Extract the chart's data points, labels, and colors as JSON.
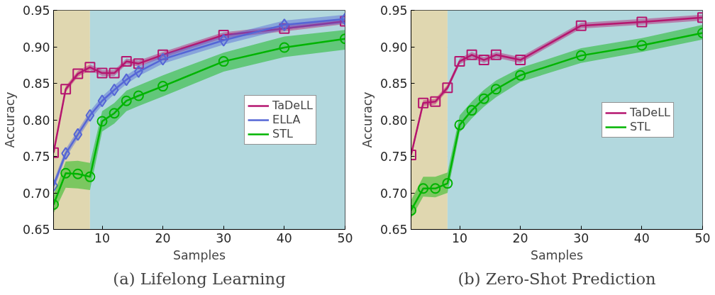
{
  "chart_data": [
    {
      "type": "line",
      "title": "(a) Lifelong Learning",
      "xlabel": "Samples",
      "ylabel": "Accuracy",
      "x": [
        2,
        4,
        6,
        8,
        10,
        12,
        14,
        16,
        20,
        30,
        40,
        50
      ],
      "series": [
        {
          "name": "TaDeLL",
          "color": "#b5166f",
          "marker": "square",
          "values": [
            0.755,
            0.842,
            0.863,
            0.872,
            0.864,
            0.864,
            0.88,
            0.877,
            0.889,
            0.916,
            0.925,
            0.935
          ],
          "lower": [
            0.751,
            0.838,
            0.859,
            0.868,
            0.86,
            0.86,
            0.876,
            0.873,
            0.885,
            0.912,
            0.921,
            0.931
          ],
          "upper": [
            0.759,
            0.846,
            0.867,
            0.876,
            0.868,
            0.868,
            0.884,
            0.881,
            0.893,
            0.92,
            0.929,
            0.939
          ]
        },
        {
          "name": "ELLA",
          "color": "#5566d6",
          "marker": "diamond",
          "values": [
            0.71,
            0.754,
            0.78,
            0.806,
            0.826,
            0.841,
            0.855,
            0.866,
            0.883,
            0.909,
            0.93,
            0.938
          ],
          "lower": [
            0.704,
            0.748,
            0.774,
            0.8,
            0.82,
            0.835,
            0.849,
            0.86,
            0.877,
            0.903,
            0.924,
            0.932
          ],
          "upper": [
            0.716,
            0.76,
            0.786,
            0.812,
            0.832,
            0.847,
            0.861,
            0.872,
            0.889,
            0.915,
            0.936,
            0.944
          ]
        },
        {
          "name": "STL",
          "color": "#00b400",
          "marker": "circle",
          "values": [
            0.684,
            0.727,
            0.726,
            0.722,
            0.798,
            0.809,
            0.826,
            0.833,
            0.846,
            0.88,
            0.899,
            0.911
          ],
          "lower": [
            0.672,
            0.707,
            0.706,
            0.704,
            0.784,
            0.795,
            0.812,
            0.819,
            0.832,
            0.866,
            0.886,
            0.896
          ],
          "upper": [
            0.697,
            0.743,
            0.744,
            0.741,
            0.812,
            0.823,
            0.84,
            0.847,
            0.861,
            0.892,
            0.914,
            0.923
          ]
        }
      ],
      "bands": [
        {
          "axis": "x",
          "from": 2,
          "to": 8,
          "color": "#e0d7b0"
        },
        {
          "axis": "x",
          "from": 8,
          "to": 50,
          "color": "#b2d8de"
        }
      ],
      "xlim": [
        2,
        50
      ],
      "xticks": [
        10,
        20,
        30,
        40,
        50
      ],
      "ylim": [
        0.65,
        0.95
      ],
      "yticks": [
        {
          "value": 0.65,
          "label": "0.65"
        },
        {
          "value": 0.7,
          "label": "0.70"
        },
        {
          "value": 0.75,
          "label": "0.75"
        },
        {
          "value": 0.8,
          "label": "0.80"
        },
        {
          "value": 0.85,
          "label": "0.85"
        },
        {
          "value": 0.9,
          "label": "0.90"
        },
        {
          "value": 0.95,
          "label": "0.95"
        }
      ],
      "grid": true,
      "legend": "right",
      "line_style": "solid"
    },
    {
      "type": "line",
      "title": "(b) Zero-Shot Prediction",
      "xlabel": "Samples",
      "ylabel": "Accuracy",
      "x": [
        2,
        4,
        6,
        8,
        10,
        12,
        14,
        16,
        20,
        30,
        40,
        50
      ],
      "series": [
        {
          "name": "TaDeLL",
          "color": "#b5166f",
          "marker": "square",
          "values": [
            0.752,
            0.823,
            0.825,
            0.844,
            0.88,
            0.889,
            0.882,
            0.889,
            0.882,
            0.929,
            0.934,
            0.94
          ],
          "lower": [
            0.748,
            0.819,
            0.821,
            0.84,
            0.876,
            0.885,
            0.878,
            0.885,
            0.878,
            0.925,
            0.93,
            0.936
          ],
          "upper": [
            0.756,
            0.827,
            0.829,
            0.848,
            0.884,
            0.893,
            0.886,
            0.893,
            0.886,
            0.933,
            0.938,
            0.944
          ]
        },
        {
          "name": "STL",
          "color": "#00b400",
          "marker": "circle",
          "values": [
            0.676,
            0.706,
            0.706,
            0.713,
            0.793,
            0.813,
            0.829,
            0.842,
            0.861,
            0.888,
            0.902,
            0.919
          ],
          "lower": [
            0.665,
            0.695,
            0.694,
            0.7,
            0.783,
            0.802,
            0.818,
            0.831,
            0.852,
            0.878,
            0.893,
            0.91
          ],
          "upper": [
            0.69,
            0.722,
            0.722,
            0.728,
            0.806,
            0.825,
            0.841,
            0.854,
            0.871,
            0.898,
            0.912,
            0.93
          ]
        }
      ],
      "bands": [
        {
          "axis": "x",
          "from": 2,
          "to": 8,
          "color": "#e0d7b0"
        },
        {
          "axis": "x",
          "from": 8,
          "to": 50,
          "color": "#b2d8de"
        }
      ],
      "xlim": [
        2,
        50
      ],
      "xticks": [
        10,
        20,
        30,
        40,
        50
      ],
      "ylim": [
        0.65,
        0.95
      ],
      "yticks": [
        {
          "value": 0.65,
          "label": "0.65"
        },
        {
          "value": 0.7,
          "label": "0.70"
        },
        {
          "value": 0.75,
          "label": "0.75"
        },
        {
          "value": 0.8,
          "label": "0.80"
        },
        {
          "value": 0.85,
          "label": "0.85"
        },
        {
          "value": 0.9,
          "label": "0.90"
        },
        {
          "value": 0.95,
          "label": "0.95"
        }
      ],
      "grid": true,
      "legend": "right",
      "line_style": "solid"
    }
  ]
}
